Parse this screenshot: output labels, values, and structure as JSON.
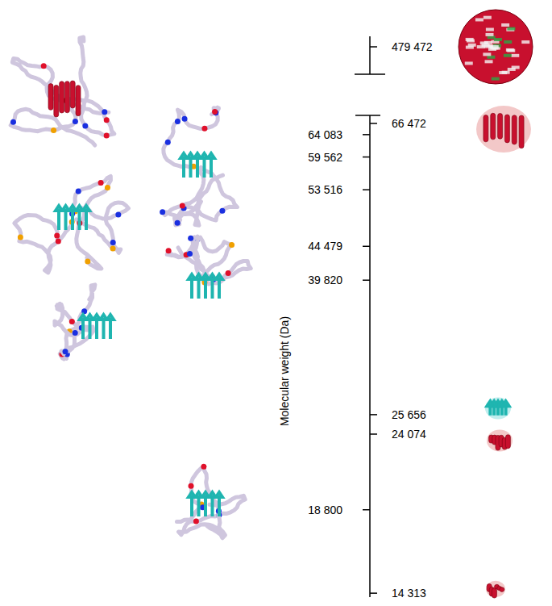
{
  "chart_data": {
    "type": "scale",
    "y_label": "Molecular weight (Da)",
    "log": "y",
    "ylim": [
      14130,
      68240
    ],
    "yticks": [
      {
        "value": 64083,
        "label": "64 083"
      },
      {
        "value": 59562,
        "label": "59 562"
      },
      {
        "value": 53516,
        "label": "53 516"
      },
      {
        "value": 44479,
        "label": "44 479"
      },
      {
        "value": 39820,
        "label": "39 820"
      },
      {
        "value": 18800,
        "label": "18 800"
      }
    ],
    "y2lim": [
      14130,
      68240
    ],
    "y2ticks": [
      {
        "value": 66472,
        "label": "66 472"
      },
      {
        "value": 25656,
        "label": "25 656"
      },
      {
        "value": 24074,
        "label": "24 074"
      },
      {
        "value": 14313,
        "label": "14 313"
      }
    ],
    "break_ylim": [
      438400,
      496200
    ],
    "break_ticks": [
      {
        "value": 479472,
        "label": "479 472"
      }
    ]
  }
}
